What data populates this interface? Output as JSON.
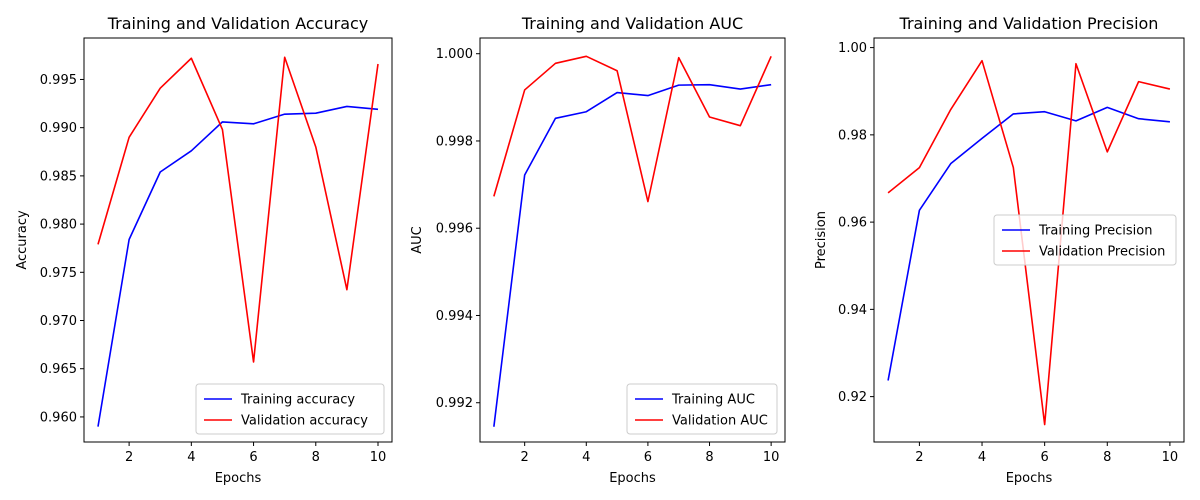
{
  "chart_data": [
    {
      "type": "line",
      "title": "Training and Validation Accuracy",
      "xlabel": "Epochs",
      "ylabel": "Accuracy",
      "xlim": [
        0.55,
        10.45
      ],
      "ylim": [
        0.9574,
        0.9993
      ],
      "xticks": [
        2,
        4,
        6,
        8,
        10
      ],
      "xtick_labels": [
        "2",
        "4",
        "6",
        "8",
        "10"
      ],
      "yticks": [
        0.96,
        0.965,
        0.97,
        0.975,
        0.98,
        0.985,
        0.99,
        0.995
      ],
      "ytick_labels": [
        "0.960",
        "0.965",
        "0.970",
        "0.975",
        "0.980",
        "0.985",
        "0.990",
        "0.995"
      ],
      "x": [
        1,
        2,
        3,
        4,
        5,
        6,
        7,
        8,
        9,
        10
      ],
      "legend_position": "lower-right",
      "series": [
        {
          "name": "Training accuracy",
          "color": "#0000ff",
          "values": [
            0.959,
            0.9784,
            0.9854,
            0.9876,
            0.9906,
            0.9904,
            0.9914,
            0.9915,
            0.9922,
            0.9919
          ]
        },
        {
          "name": "Validation accuracy",
          "color": "#ff0000",
          "values": [
            0.9779,
            0.989,
            0.9941,
            0.9972,
            0.9898,
            0.9657,
            0.9973,
            0.988,
            0.9732,
            0.9966
          ]
        }
      ]
    },
    {
      "type": "line",
      "title": "Training and Validation AUC",
      "xlabel": "Epochs",
      "ylabel": "AUC",
      "xlim": [
        0.55,
        10.45
      ],
      "ylim": [
        0.9911,
        1.00036
      ],
      "xticks": [
        2,
        4,
        6,
        8,
        10
      ],
      "xtick_labels": [
        "2",
        "4",
        "6",
        "8",
        "10"
      ],
      "yticks": [
        0.992,
        0.994,
        0.996,
        0.998,
        1.0
      ],
      "ytick_labels": [
        "0.992",
        "0.994",
        "0.996",
        "0.998",
        "1.000"
      ],
      "x": [
        1,
        2,
        3,
        4,
        5,
        6,
        7,
        8,
        9,
        10
      ],
      "legend_position": "lower-right",
      "series": [
        {
          "name": "Training AUC",
          "color": "#0000ff",
          "values": [
            0.99145,
            0.99722,
            0.99852,
            0.99867,
            0.99911,
            0.99904,
            0.99928,
            0.99929,
            0.99919,
            0.99929
          ]
        },
        {
          "name": "Validation AUC",
          "color": "#ff0000",
          "values": [
            0.99673,
            0.99917,
            0.99978,
            0.99994,
            0.99961,
            0.99661,
            0.99991,
            0.99855,
            0.99835,
            0.99994
          ]
        }
      ]
    },
    {
      "type": "line",
      "title": "Training and Validation Precision",
      "xlabel": "Epochs",
      "ylabel": "Precision",
      "xlim": [
        0.55,
        10.45
      ],
      "ylim": [
        0.9096,
        1.0022
      ],
      "xticks": [
        2,
        4,
        6,
        8,
        10
      ],
      "xtick_labels": [
        "2",
        "4",
        "6",
        "8",
        "10"
      ],
      "yticks": [
        0.92,
        0.94,
        0.96,
        0.98,
        1.0
      ],
      "ytick_labels": [
        "0.92",
        "0.94",
        "0.96",
        "0.98",
        "1.00"
      ],
      "x": [
        1,
        2,
        3,
        4,
        5,
        6,
        7,
        8,
        9,
        10
      ],
      "legend_position": "center-right",
      "series": [
        {
          "name": "Training Precision",
          "color": "#0000ff",
          "values": [
            0.9237,
            0.9627,
            0.9734,
            0.9792,
            0.9848,
            0.9853,
            0.9832,
            0.9863,
            0.9837,
            0.983
          ]
        },
        {
          "name": "Validation Precision",
          "color": "#ff0000",
          "values": [
            0.9667,
            0.9725,
            0.9858,
            0.997,
            0.9725,
            0.9136,
            0.9963,
            0.9761,
            0.9922,
            0.9905
          ]
        }
      ]
    }
  ]
}
